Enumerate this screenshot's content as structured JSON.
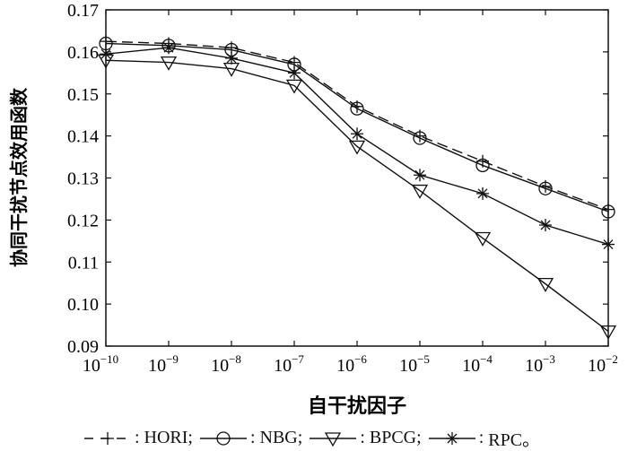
{
  "chart_data": {
    "type": "line",
    "xlabel": "自干扰因子",
    "ylabel": "协同干扰节点效用函数",
    "x_tick_exponents": [
      "-10",
      "-9",
      "-8",
      "-7",
      "-6",
      "-5",
      "-4",
      "-3",
      "-2"
    ],
    "x_tick_base": "10",
    "x": [
      1e-10,
      1e-09,
      1e-08,
      1e-07,
      1e-06,
      1e-05,
      0.0001,
      0.001,
      0.01
    ],
    "xscale": "log",
    "ylim": [
      0.09,
      0.17
    ],
    "y_ticks": [
      "0.09",
      "0.10",
      "0.11",
      "0.12",
      "0.13",
      "0.14",
      "0.15",
      "0.16",
      "0.17"
    ],
    "grid": false,
    "legend_position": "bottom",
    "series": [
      {
        "name": "HORI",
        "legend_label": "HORI;",
        "legend_prefix": ": ",
        "style": "dashed",
        "marker": "plus",
        "values": [
          0.1625,
          0.162,
          0.161,
          0.1575,
          0.147,
          0.14,
          0.134,
          0.128,
          0.1225
        ]
      },
      {
        "name": "NBG",
        "legend_label": "NBG;",
        "legend_prefix": ": ",
        "style": "solid",
        "marker": "circle",
        "values": [
          0.162,
          0.1615,
          0.1605,
          0.157,
          0.1465,
          0.1395,
          0.133,
          0.1275,
          0.122
        ]
      },
      {
        "name": "BPCG",
        "legend_label": "BPCG;",
        "legend_prefix": ": ",
        "style": "solid",
        "marker": "triangle-down",
        "values": [
          0.158,
          0.1575,
          0.156,
          0.152,
          0.1375,
          0.127,
          0.1157,
          0.1048,
          0.0935
        ]
      },
      {
        "name": "RPC",
        "legend_label": "RPC。",
        "legend_prefix": ": ",
        "style": "solid",
        "marker": "star",
        "values": [
          0.1595,
          0.161,
          0.1585,
          0.155,
          0.1405,
          0.1307,
          0.1263,
          0.1188,
          0.1142
        ]
      }
    ]
  }
}
